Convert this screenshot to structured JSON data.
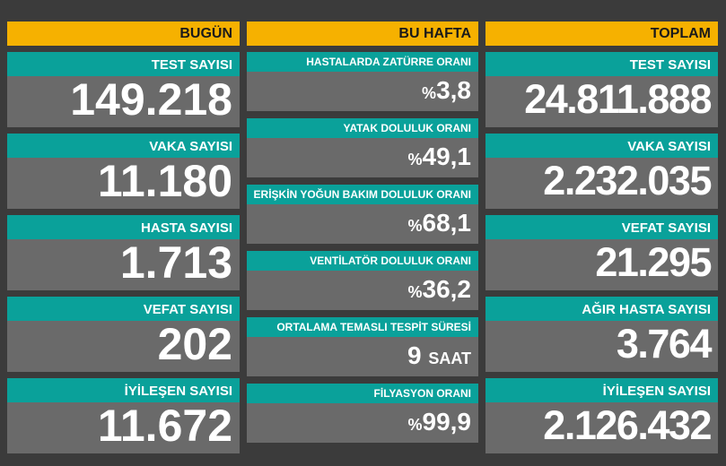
{
  "columns": [
    {
      "title": "BUGÜN",
      "items": [
        {
          "label": "TEST SAYISI",
          "value": "149.218"
        },
        {
          "label": "VAKA SAYISI",
          "value": "11.180"
        },
        {
          "label": "HASTA SAYISI",
          "value": "1.713"
        },
        {
          "label": "VEFAT SAYISI",
          "value": "202"
        },
        {
          "label": "İYİLEŞEN SAYISI",
          "value": "11.672"
        }
      ]
    },
    {
      "title": "BU HAFTA",
      "items": [
        {
          "label": "HASTALARDA ZATÜRRE ORANI",
          "prefix": "%",
          "value": "3,8"
        },
        {
          "label": "YATAK DOLULUK ORANI",
          "prefix": "%",
          "value": "49,1"
        },
        {
          "label": "ERİŞKİN YOĞUN BAKIM DOLULUK ORANI",
          "prefix": "%",
          "value": "68,1"
        },
        {
          "label": "VENTİLATÖR DOLULUK ORANI",
          "prefix": "%",
          "value": "36,2"
        },
        {
          "label": "ORTALAMA TEMASLI TESPİT SÜRESİ",
          "value": "9",
          "suffix": "SAAT"
        },
        {
          "label": "FİLYASYON ORANI",
          "prefix": "%",
          "value": "99,9"
        }
      ]
    },
    {
      "title": "TOPLAM",
      "items": [
        {
          "label": "TEST SAYISI",
          "value": "24.811.888"
        },
        {
          "label": "VAKA SAYISI",
          "value": "2.232.035"
        },
        {
          "label": "VEFAT SAYISI",
          "value": "21.295"
        },
        {
          "label": "AĞIR HASTA SAYISI",
          "value": "3.764"
        },
        {
          "label": "İYİLEŞEN SAYISI",
          "value": "2.126.432"
        }
      ]
    }
  ]
}
